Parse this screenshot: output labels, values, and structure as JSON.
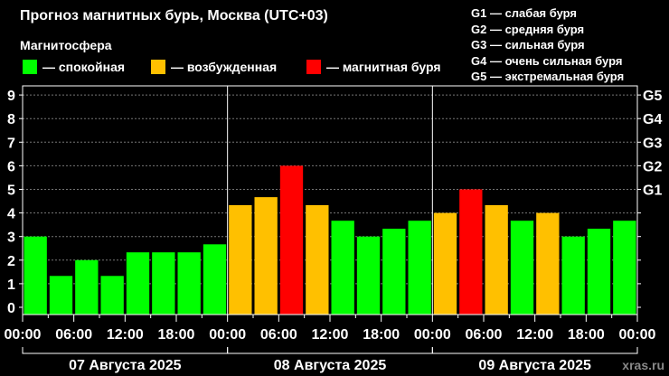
{
  "header": {
    "title": "Прогноз магнитных бурь, Москва (UTC+03)",
    "subtitle": "Магнитосфера"
  },
  "legend": [
    {
      "label": "— спокойная",
      "color": "#00ff00"
    },
    {
      "label": "— возбужденная",
      "color": "#ffc000"
    },
    {
      "label": "— магнитная буря",
      "color": "#ff0000"
    }
  ],
  "g_legend": [
    "G1 — слабая буря",
    "G2 — средняя буря",
    "G3 — сильная буря",
    "G4 — очень сильная буря",
    "G5 — экстремальная буря"
  ],
  "watermark": "xras.ru",
  "chart_data": {
    "type": "bar",
    "ylim": [
      0,
      9
    ],
    "y_ticks": [
      "0",
      "1",
      "2",
      "3",
      "4",
      "5",
      "6",
      "7",
      "8",
      "9"
    ],
    "y2_ticks": [
      {
        "value": 5,
        "label": "G1"
      },
      {
        "value": 6,
        "label": "G2"
      },
      {
        "value": 7,
        "label": "G3"
      },
      {
        "value": 8,
        "label": "G4"
      },
      {
        "value": 9,
        "label": "G5"
      }
    ],
    "grid": "horizontal-dotted",
    "x_tick_labels": [
      "00:00",
      "06:00",
      "12:00",
      "18:00",
      "00:00",
      "06:00",
      "12:00",
      "18:00",
      "00:00",
      "06:00",
      "12:00",
      "18:00",
      "00:00"
    ],
    "days": [
      "07 Августа 2025",
      "08 Августа 2025",
      "09 Августа 2025"
    ],
    "bars_per_day": 8,
    "values": [
      3,
      1.33,
      2,
      1.33,
      2.33,
      2.33,
      2.33,
      2.67,
      4.33,
      4.67,
      6,
      4.33,
      3.67,
      3,
      3.33,
      3.67,
      4,
      5,
      4.33,
      3.67,
      4,
      3,
      3.33,
      3.67
    ],
    "colors": {
      "quiet": "#00ff00",
      "active": "#ffc000",
      "storm": "#ff0000"
    }
  }
}
